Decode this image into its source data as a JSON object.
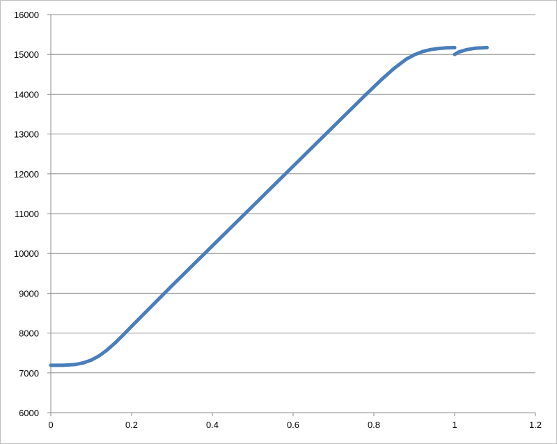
{
  "chart_data": {
    "type": "scatter",
    "title": "",
    "xlabel": "",
    "ylabel": "",
    "xlim": [
      0,
      1.2
    ],
    "ylim": [
      6000,
      16000
    ],
    "x_ticks": [
      "0",
      "0.2",
      "0.4",
      "0.6",
      "0.8",
      "1",
      "1.2"
    ],
    "y_ticks": [
      "6000",
      "7000",
      "8000",
      "9000",
      "10000",
      "11000",
      "12000",
      "13000",
      "14000",
      "15000",
      "16000"
    ],
    "grid": "horizontal",
    "legend": "none",
    "color": "#4a7ebb",
    "segments": [
      {
        "x": [
          0,
          0.03,
          0.06,
          0.08,
          0.1,
          0.12,
          0.14,
          0.16,
          0.18,
          0.2,
          0.3,
          0.4,
          0.5,
          0.6,
          0.7,
          0.78,
          0.82,
          0.85,
          0.88,
          0.9,
          0.92,
          0.94,
          0.96,
          0.98,
          1.0
        ],
        "y": [
          7190,
          7190,
          7210,
          7250,
          7320,
          7430,
          7580,
          7760,
          7960,
          8170,
          9190,
          10190,
          11190,
          12190,
          13190,
          13990,
          14380,
          14650,
          14880,
          14990,
          15070,
          15120,
          15150,
          15165,
          15170
        ]
      },
      {
        "x": [
          1.0,
          1.01,
          1.03,
          1.05,
          1.08
        ],
        "y": [
          15000,
          15060,
          15120,
          15155,
          15170
        ]
      }
    ]
  }
}
